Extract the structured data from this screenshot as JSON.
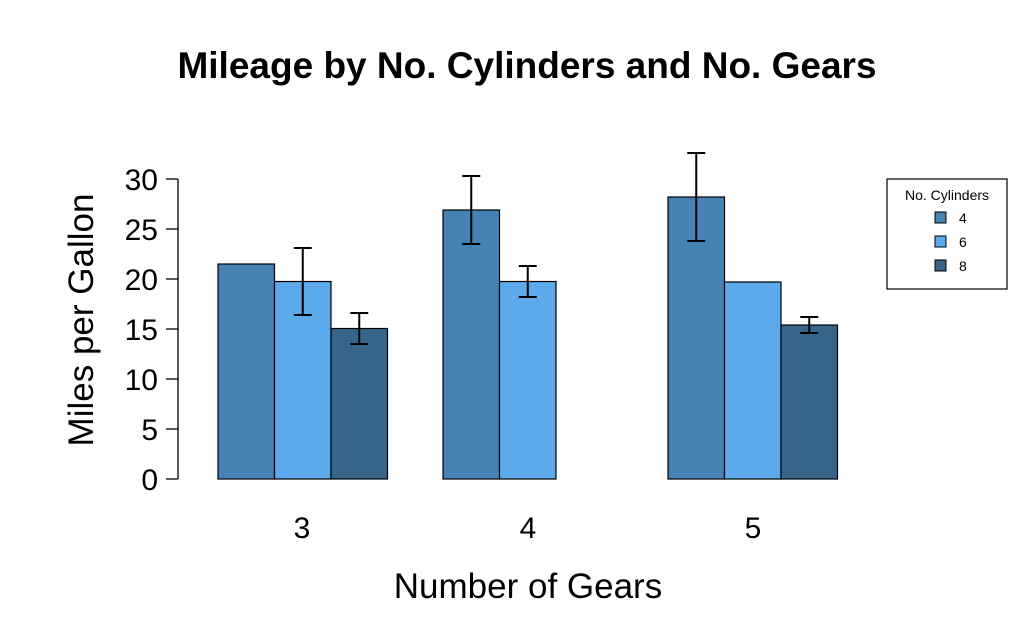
{
  "chart_data": {
    "type": "bar",
    "title": "Mileage by No. Cylinders and No. Gears",
    "xlabel": "Number of  Gears",
    "ylabel": "Miles per Gallon",
    "categories": [
      "3",
      "4",
      "5"
    ],
    "ylim": [
      0,
      30
    ],
    "yticks": [
      0,
      5,
      10,
      15,
      20,
      25,
      30
    ],
    "legend": {
      "title": "No. Cylinders",
      "position": "right",
      "entries": [
        "4",
        "6",
        "8"
      ]
    },
    "grid": false,
    "series": [
      {
        "name": "4",
        "color": "#4682b4",
        "values": [
          21.5,
          26.9,
          28.2
        ],
        "error_low": [
          null,
          23.5,
          23.8
        ],
        "error_high": [
          null,
          30.3,
          32.6
        ]
      },
      {
        "name": "6",
        "color": "#5caaec",
        "values": [
          19.75,
          19.75,
          19.7
        ],
        "error_low": [
          16.4,
          18.2,
          null
        ],
        "error_high": [
          23.1,
          21.3,
          null
        ]
      },
      {
        "name": "8",
        "color": "#36648b",
        "values": [
          15.05,
          null,
          15.4
        ],
        "error_low": [
          13.5,
          null,
          14.6
        ],
        "error_high": [
          16.6,
          null,
          16.2
        ]
      }
    ]
  }
}
